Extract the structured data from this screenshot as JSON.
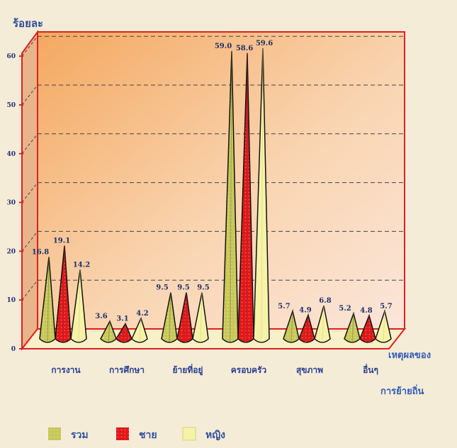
{
  "chart_data": {
    "type": "bar",
    "ylabel": "ร้อยละ",
    "xlabel_line1": "เหตุผลของ",
    "xlabel_line2": "การย้ายถิ่น",
    "ylim": [
      0,
      60
    ],
    "yticks": [
      "0",
      "10",
      "20",
      "30",
      "40",
      "50",
      "60"
    ],
    "categories": [
      "การงาน",
      "การศึกษา",
      "ย้ายที่อยู่",
      "ครอบครัว",
      "สุขภาพ",
      "อื่นๆ"
    ],
    "series": [
      {
        "name": "รวม",
        "values": [
          16.8,
          3.6,
          9.5,
          59.0,
          5.7,
          5.2
        ],
        "labels": [
          "16.8",
          "3.6",
          "9.5",
          "59.0",
          "5.7",
          "5.2"
        ],
        "color": "#9a9a5a"
      },
      {
        "name": "ชาย",
        "values": [
          19.1,
          3.1,
          9.5,
          58.6,
          4.9,
          4.8
        ],
        "labels": [
          "19.1",
          "3.1",
          "9.5",
          "58.6",
          "4.9",
          "4.8"
        ],
        "color": "#d94a5a"
      },
      {
        "name": "หญิง",
        "values": [
          14.2,
          4.2,
          9.5,
          59.6,
          6.8,
          5.7
        ],
        "labels": [
          "14.2",
          "4.2",
          "9.5",
          "59.6",
          "6.8",
          "5.7"
        ],
        "color": "#f2ee9e"
      }
    ],
    "grid": true,
    "legend": "bottom"
  }
}
